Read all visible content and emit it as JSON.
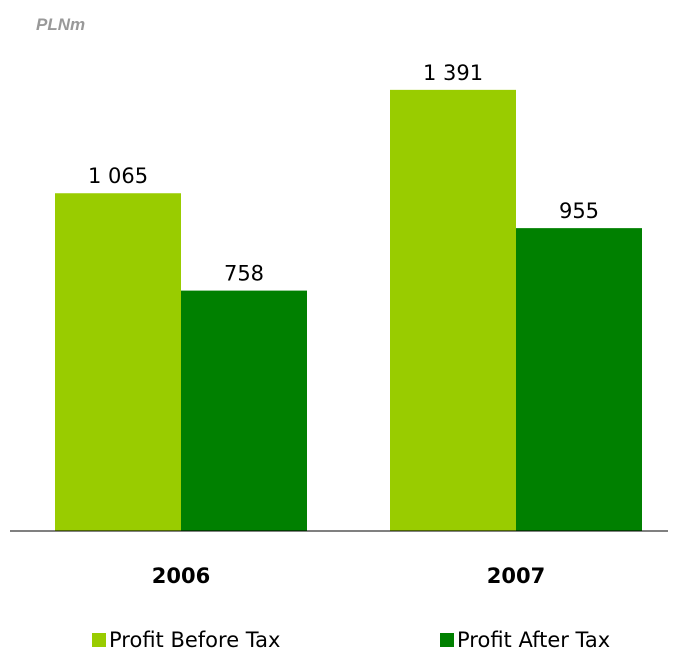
{
  "chart_data": {
    "type": "bar",
    "unit_label": "PLNm",
    "categories": [
      "2006",
      "2007"
    ],
    "series": [
      {
        "name": "Profit Before Tax",
        "values": [
          1065,
          1391
        ],
        "value_labels": [
          "1 065",
          "1 391"
        ],
        "color": "#99cc00"
      },
      {
        "name": "Profit After Tax",
        "values": [
          758,
          955
        ],
        "value_labels": [
          "758",
          "955"
        ],
        "color": "#008000"
      }
    ],
    "ylim": [
      0,
      1400
    ],
    "grid": false,
    "legend_placement": "bottom",
    "colors": {
      "unit_label": "#999999",
      "axis": "#000000",
      "text": "#000000"
    }
  }
}
